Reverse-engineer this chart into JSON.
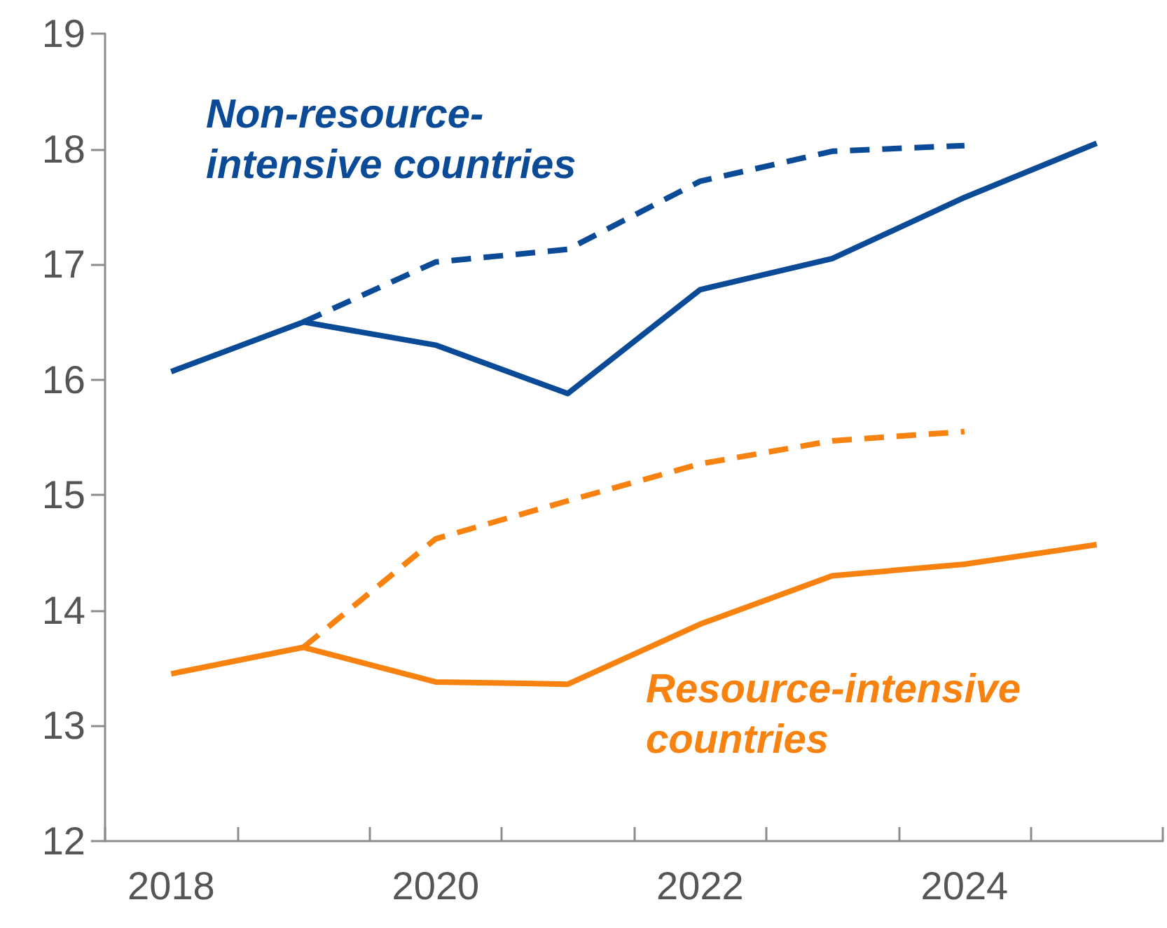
{
  "chart_data": {
    "type": "line",
    "categories": [
      "2018",
      null,
      "2020",
      null,
      "2022",
      null,
      "2024",
      null
    ],
    "series": [
      {
        "name": "Non-resource-intensive countries",
        "color": "#0b4a97",
        "line_style": "solid",
        "values": [
          16.07,
          16.5,
          16.3,
          15.88,
          16.78,
          17.05,
          17.58,
          18.05
        ]
      },
      {
        "color": "#0b4a97",
        "line_style": "dashed",
        "values": [
          null,
          16.5,
          17.02,
          17.13,
          17.72,
          17.98,
          18.03,
          null
        ]
      },
      {
        "name": "Resource-intensive countries",
        "color": "#f7820f",
        "line_style": "solid",
        "values": [
          13.45,
          13.68,
          13.38,
          13.36,
          13.88,
          14.3,
          14.4,
          14.57
        ]
      },
      {
        "color": "#f7820f",
        "line_style": "dashed",
        "values": [
          null,
          13.68,
          14.62,
          14.95,
          15.27,
          15.47,
          15.55,
          null
        ]
      }
    ],
    "ylim": [
      12,
      19
    ],
    "yticks": [
      12,
      13,
      14,
      15,
      16,
      17,
      18,
      19
    ],
    "grid": false,
    "legend": false,
    "marker": "none"
  }
}
